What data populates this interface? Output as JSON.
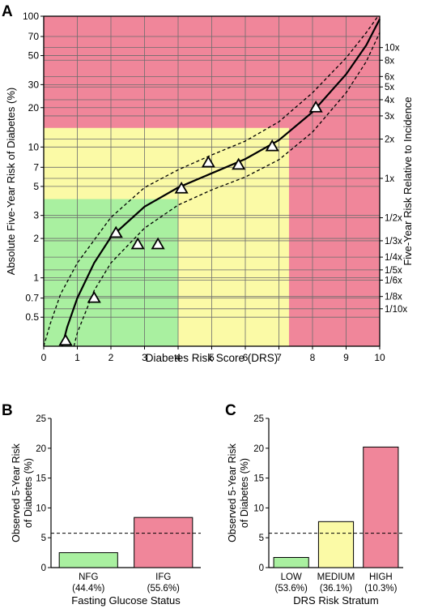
{
  "colors": {
    "red": "#f0869a",
    "yellow": "#fbfaa6",
    "green": "#a9f0a0",
    "grid": "#6d6d6d",
    "axis": "#000000"
  },
  "panels": {
    "a": {
      "letter": "A"
    },
    "b": {
      "letter": "B"
    },
    "c": {
      "letter": "C"
    }
  },
  "chart_data": [
    {
      "id": "A",
      "type": "line",
      "xlabel": "Diabetes Risk Score (DRS)",
      "ylabel": "Absolute Five-Year Risk of Diabetes (%)",
      "y2label": "Five-Year Risk Relative to Incidence",
      "xlim": [
        0,
        10
      ],
      "ylim": [
        0.3,
        100
      ],
      "yscale": "log",
      "grid": true,
      "xticks": [
        "0",
        "1",
        "2",
        "3",
        "4",
        "5",
        "6",
        "7",
        "8",
        "9",
        "10"
      ],
      "yticks": [
        {
          "v": 0.5,
          "label": "0.5"
        },
        {
          "v": 0.7,
          "label": "0.7"
        },
        {
          "v": 1,
          "label": "1"
        },
        {
          "v": 2,
          "label": "2"
        },
        {
          "v": 3,
          "label": "3"
        },
        {
          "v": 5,
          "label": "5"
        },
        {
          "v": 7,
          "label": "7"
        },
        {
          "v": 10,
          "label": "10"
        },
        {
          "v": 20,
          "label": "20"
        },
        {
          "v": 30,
          "label": "30"
        },
        {
          "v": 50,
          "label": "50"
        },
        {
          "v": 70,
          "label": "70"
        },
        {
          "v": 100,
          "label": "100"
        }
      ],
      "y2ticks": [
        {
          "v": 0.58,
          "label": "1/10x"
        },
        {
          "v": 0.72,
          "label": "1/8x"
        },
        {
          "v": 0.96,
          "label": "1/6x"
        },
        {
          "v": 1.15,
          "label": "1/5x"
        },
        {
          "v": 1.44,
          "label": "1/4x"
        },
        {
          "v": 1.92,
          "label": "1/3x"
        },
        {
          "v": 2.88,
          "label": "1/2x"
        },
        {
          "v": 5.76,
          "label": "1x"
        },
        {
          "v": 11.5,
          "label": "2x"
        },
        {
          "v": 17.3,
          "label": "3x"
        },
        {
          "v": 23.0,
          "label": "4x"
        },
        {
          "v": 28.8,
          "label": "5x"
        },
        {
          "v": 34.6,
          "label": "6x"
        },
        {
          "v": 46.1,
          "label": "8x"
        },
        {
          "v": 57.6,
          "label": "10x"
        }
      ],
      "risk_regions": [
        {
          "name": "LOW",
          "x": [
            0,
            4
          ],
          "y_max": 4,
          "color": "green"
        },
        {
          "name": "MEDIUM",
          "x": [
            0,
            7.3
          ],
          "y_max": 14,
          "color": "yellow"
        },
        {
          "name": "HIGH",
          "x": [
            0,
            10
          ],
          "y_max": 100,
          "color": "red"
        }
      ],
      "series": [
        {
          "style": "solid",
          "x": [
            0.55,
            0.7,
            1.0,
            1.5,
            2.0,
            3.0,
            4.0,
            5.0,
            6.0,
            7.0,
            8.0,
            9.0,
            9.6,
            10.0
          ],
          "y": [
            0.3,
            0.42,
            0.7,
            1.3,
            2.05,
            3.5,
            4.9,
            6.3,
            8.1,
            11.3,
            18.5,
            36,
            60,
            95
          ]
        },
        {
          "style": "dashed",
          "x": [
            0.0,
            0.2,
            0.5,
            1.0,
            2.0,
            3.0,
            4.0,
            5.0,
            6.0,
            7.0,
            8.0,
            9.0,
            9.6,
            9.95
          ],
          "y": [
            0.3,
            0.45,
            0.75,
            1.3,
            2.9,
            4.9,
            6.7,
            8.7,
            11.1,
            15.6,
            26,
            48,
            75,
            100
          ]
        },
        {
          "style": "dashed",
          "x": [
            0.9,
            1.0,
            1.5,
            2.0,
            3.0,
            4.0,
            5.0,
            6.0,
            7.0,
            8.0,
            9.0,
            9.6,
            10.0
          ],
          "y": [
            0.3,
            0.38,
            0.8,
            1.3,
            2.4,
            3.6,
            4.7,
            5.9,
            8.0,
            13.0,
            26,
            45,
            75
          ]
        }
      ],
      "points": {
        "marker": "triangle",
        "x": [
          0.65,
          1.5,
          2.15,
          2.8,
          3.4,
          4.1,
          4.9,
          5.8,
          6.8,
          8.1
        ],
        "y": [
          0.33,
          0.7,
          2.2,
          1.8,
          1.8,
          4.8,
          7.6,
          7.3,
          10.1,
          20.0
        ]
      }
    },
    {
      "id": "B",
      "type": "bar",
      "ylabel": "Observed 5-Year Risk of Diabetes (%)",
      "xlabel": "Fasting Glucose Status",
      "ylim": [
        0,
        25
      ],
      "yticks": [
        0,
        5,
        10,
        15,
        20,
        25
      ],
      "reference_line": 5.76,
      "categories": [
        "NFG",
        "IFG"
      ],
      "shares": [
        "(44.4%)",
        "(55.6%)"
      ],
      "values": [
        2.5,
        8.4
      ],
      "colors": [
        "green",
        "red"
      ]
    },
    {
      "id": "C",
      "type": "bar",
      "ylabel": "Observed 5-Year Risk of Diabetes (%)",
      "xlabel": "DRS Risk Stratum",
      "ylim": [
        0,
        25
      ],
      "yticks": [
        0,
        5,
        10,
        15,
        20,
        25
      ],
      "reference_line": 5.76,
      "categories": [
        "LOW",
        "MEDIUM",
        "HIGH"
      ],
      "shares": [
        "(53.6%)",
        "(36.1%)",
        "(10.3%)"
      ],
      "values": [
        1.7,
        7.7,
        20.2
      ],
      "colors": [
        "green",
        "yellow",
        "red"
      ]
    }
  ]
}
